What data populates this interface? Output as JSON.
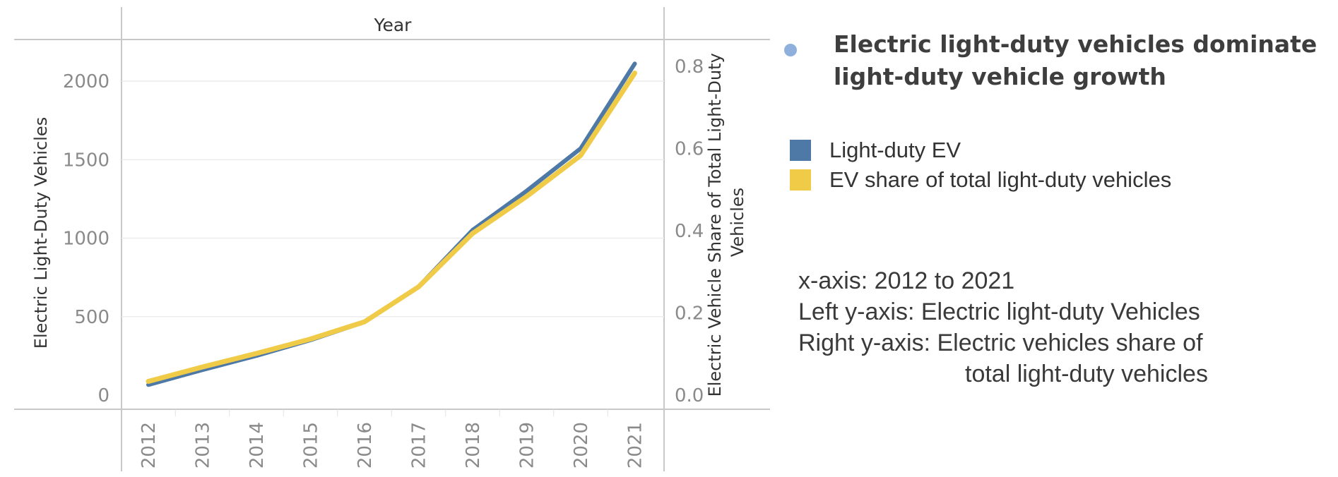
{
  "headline": "Electric light-duty vehicles dominate light-duty vehicle growth",
  "legend": [
    {
      "label": "Light-duty EV",
      "color": "#4e79a7"
    },
    {
      "label": "EV share of total light-duty vehicles",
      "color": "#f0cb48"
    }
  ],
  "axis_notes": {
    "x": "x-axis: 2012 to 2021",
    "left": "Left y-axis: Electric light-duty Vehicles",
    "right_line1": "Right y-axis: Electric vehicles share of",
    "right_line2": "total light-duty vehicles"
  },
  "chart_data": {
    "type": "line",
    "title": "",
    "x_title": "Year",
    "x": [
      "2012",
      "2013",
      "2014",
      "2015",
      "2016",
      "2017",
      "2018",
      "2019",
      "2020",
      "2021"
    ],
    "ylabel": "Electric Light-Duty Vehicles",
    "y2label": "Electric Vehicle Share of Total Light-Duty Vehicles",
    "ylim": [
      0,
      2200
    ],
    "y2lim": [
      0,
      0.8
    ],
    "yticks": [
      0,
      500,
      1000,
      1500,
      2000
    ],
    "y2ticks": [
      0.0,
      0.2,
      0.4,
      0.6,
      0.8
    ],
    "series": [
      {
        "name": "Light-duty EV",
        "axis": "left",
        "color": "#4e79a7",
        "values": [
          75,
          170,
          260,
          360,
          475,
          700,
          1060,
          1310,
          1580,
          2120
        ]
      },
      {
        "name": "EV share of total light-duty vehicles",
        "axis": "right",
        "color": "#f0cb48",
        "values": [
          0.03,
          0.065,
          0.098,
          0.133,
          0.175,
          0.26,
          0.39,
          0.48,
          0.58,
          0.78
        ]
      }
    ]
  }
}
